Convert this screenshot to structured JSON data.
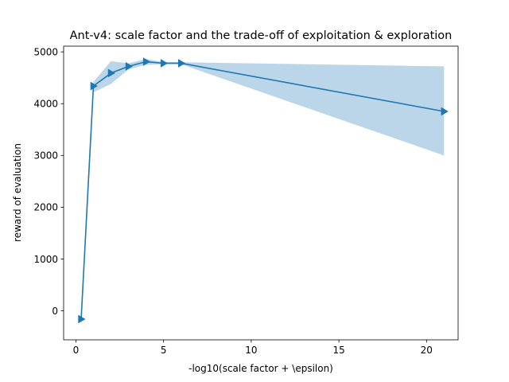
{
  "chart_data": {
    "type": "line",
    "title": "Ant-v4: scale factor and the trade-off of exploitation & exploration",
    "xlabel": "-log10(scale factor + \\epsilon)",
    "ylabel": "reward of evaluation",
    "xlim": [
      -0.7,
      21.8
    ],
    "ylim": [
      -560,
      5110
    ],
    "xticks": [
      0,
      5,
      10,
      15,
      20
    ],
    "xtick_labels": [
      "0",
      "5",
      "10",
      "15",
      "20"
    ],
    "yticks": [
      0,
      1000,
      2000,
      3000,
      4000,
      5000
    ],
    "ytick_labels": [
      "0",
      "1000",
      "2000",
      "3000",
      "4000",
      "5000"
    ],
    "grid": false,
    "series": [
      {
        "color": "#1f77b4",
        "marker": "triangle-right",
        "x": [
          0.3,
          1,
          2,
          3,
          4,
          5,
          6,
          21
        ],
        "y": [
          -160,
          4340,
          4590,
          4720,
          4810,
          4780,
          4780,
          3850
        ],
        "band_upper": [
          -160,
          4420,
          4820,
          4780,
          4860,
          4800,
          4800,
          4720
        ],
        "band_lower": [
          -160,
          4220,
          4380,
          4660,
          4750,
          4760,
          4760,
          3000
        ]
      }
    ]
  }
}
